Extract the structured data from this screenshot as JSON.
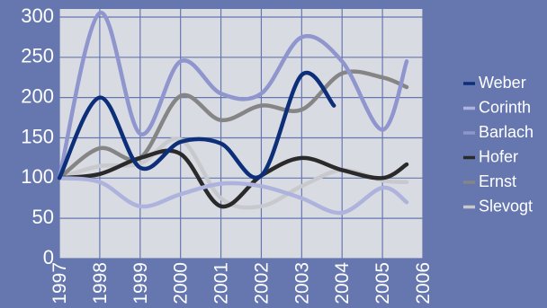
{
  "chart_data": {
    "type": "line",
    "x_ticks": [
      "1997",
      "1998",
      "1999",
      "2000",
      "2001",
      "2002",
      "2003",
      "2004",
      "2005",
      "2006"
    ],
    "y_ticks": [
      0,
      50,
      100,
      150,
      200,
      250,
      300
    ],
    "xlim": [
      1997,
      2006
    ],
    "ylim": [
      0,
      310
    ],
    "grid": true,
    "legend_position": "right",
    "title": "",
    "xlabel": "",
    "ylabel": "",
    "plot_background": "#d9dbe3",
    "series": [
      {
        "name": "Weber",
        "color": "#0d2f7a",
        "x": [
          1997,
          1998,
          1999,
          2000,
          2001,
          2002,
          2003,
          2003.8
        ],
        "y": [
          100,
          200,
          113,
          145,
          143,
          103,
          228,
          190
        ]
      },
      {
        "name": "Corinth",
        "color": "#aeb3dd",
        "x": [
          1997,
          1998,
          1999,
          2000,
          2001,
          2002,
          2003,
          2004,
          2005,
          2005.6
        ],
        "y": [
          100,
          95,
          65,
          80,
          93,
          90,
          75,
          57,
          88,
          70
        ]
      },
      {
        "name": "Barlach",
        "color": "#8f95cd",
        "x": [
          1997,
          1998,
          1999,
          2000,
          2001,
          2002,
          2003,
          2004,
          2005,
          2005.6
        ],
        "y": [
          100,
          305,
          155,
          245,
          205,
          205,
          275,
          245,
          160,
          245
        ]
      },
      {
        "name": "Hofer",
        "color": "#2a2a2a",
        "x": [
          1997,
          1998,
          1999,
          2000,
          2001,
          2002,
          2003,
          2004,
          2005,
          2005.6
        ],
        "y": [
          100,
          105,
          125,
          130,
          65,
          103,
          125,
          110,
          100,
          117
        ]
      },
      {
        "name": "Ernst",
        "color": "#858585",
        "x": [
          1997,
          1998,
          1999,
          2000,
          2001,
          2002,
          2003,
          2004,
          2005,
          2005.6
        ],
        "y": [
          100,
          137,
          125,
          202,
          172,
          190,
          185,
          230,
          225,
          213
        ]
      },
      {
        "name": "Slevogt",
        "color": "#c8c9cc",
        "x": [
          1997,
          1998,
          1999,
          2000,
          2001,
          2002,
          2003,
          2004,
          2005,
          2005.6
        ],
        "y": [
          100,
          115,
          118,
          148,
          75,
          65,
          90,
          110,
          97,
          95
        ]
      }
    ]
  }
}
